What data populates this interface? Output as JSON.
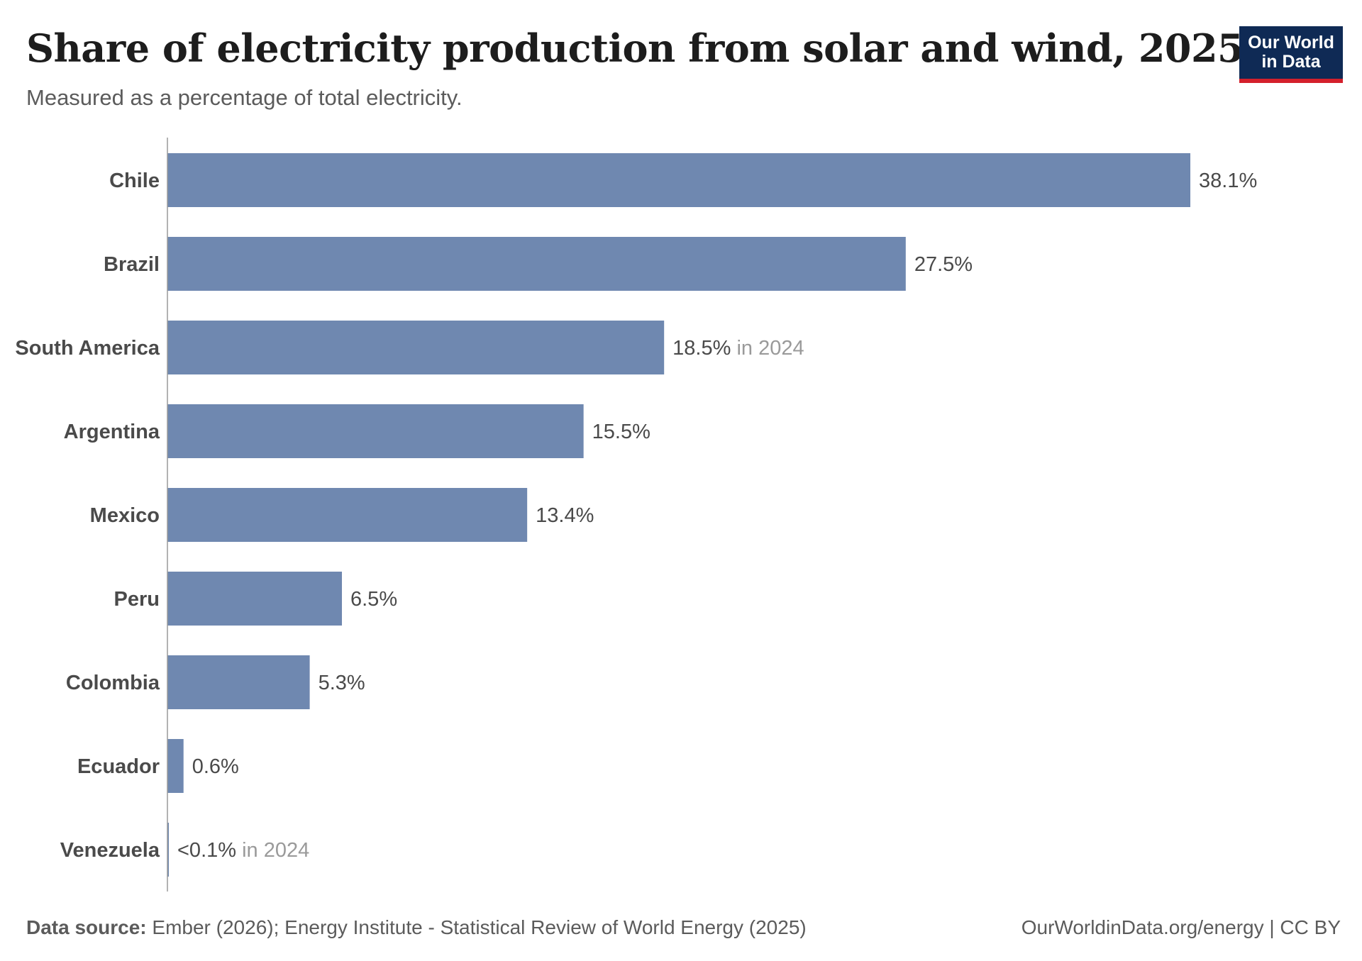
{
  "header": {
    "title": "Share of electricity production from solar and wind, 2025",
    "subtitle": "Measured as a percentage of total electricity."
  },
  "logo": {
    "line1": "Our World",
    "line2": "in Data",
    "bg_color": "#0f2a55",
    "accent_color": "#d4202c"
  },
  "footer": {
    "source_label": "Data source:",
    "source_text": " Ember (2026); Energy Institute - Statistical Review of World Energy (2025)",
    "credit": "OurWorldinData.org/energy | CC BY"
  },
  "chart_data": {
    "type": "bar",
    "orientation": "horizontal",
    "bar_color": "#6f88b0",
    "xlim": [
      0,
      38.1
    ],
    "categories": [
      "Chile",
      "Brazil",
      "South America",
      "Argentina",
      "Mexico",
      "Peru",
      "Colombia",
      "Ecuador",
      "Venezuela"
    ],
    "values": [
      38.1,
      27.5,
      18.5,
      15.5,
      13.4,
      6.5,
      5.3,
      0.6,
      0.05
    ],
    "labels": [
      "38.1%",
      "27.5%",
      "18.5%",
      "15.5%",
      "13.4%",
      "6.5%",
      "5.3%",
      "0.6%",
      "<0.1%"
    ],
    "notes": [
      "",
      "",
      "in 2024",
      "",
      "",
      "",
      "",
      "",
      "in 2024"
    ]
  }
}
